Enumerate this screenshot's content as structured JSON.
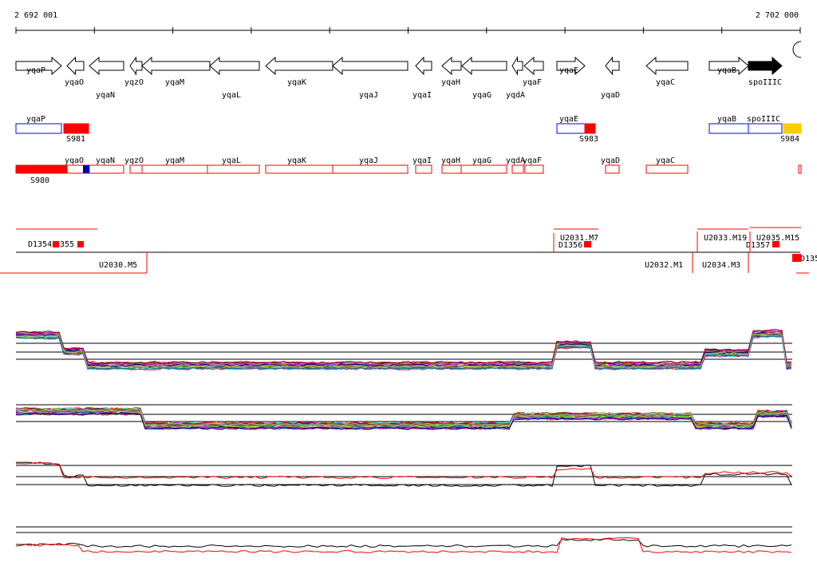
{
  "ruler": {
    "start": "2 692 001",
    "end": "2 702 000"
  },
  "genes": [
    "yqaP",
    "yqaO",
    "yqaN",
    "yqzO",
    "yqaM",
    "yqaL",
    "yqaK",
    "yqaJ",
    "yqaI",
    "yqaH",
    "yqaG",
    "yqdA",
    "yqaF",
    "yqaE",
    "yqaD",
    "yqaC",
    "yqaB",
    "spoIIIC"
  ],
  "features": [
    "yqaP",
    "S981",
    "yqaE",
    "S983",
    "yqaB",
    "spoIIIC",
    "S984"
  ],
  "segments": [
    "S980",
    "yqaO",
    "yqaN",
    "yqzO",
    "yqaM",
    "yqaL",
    "yqaK",
    "yqaJ",
    "yqaI",
    "yqaH",
    "yqaG",
    "yqdA",
    "yqaF",
    "yqaD",
    "yqaC"
  ],
  "regions": [
    "D1354",
    "355",
    "U2030.M5",
    "U2031.M7",
    "D1356",
    "U2032.M1",
    "U2033.M19",
    "U2034.M3",
    "U2035.M15",
    "D1357",
    "D135"
  ]
}
